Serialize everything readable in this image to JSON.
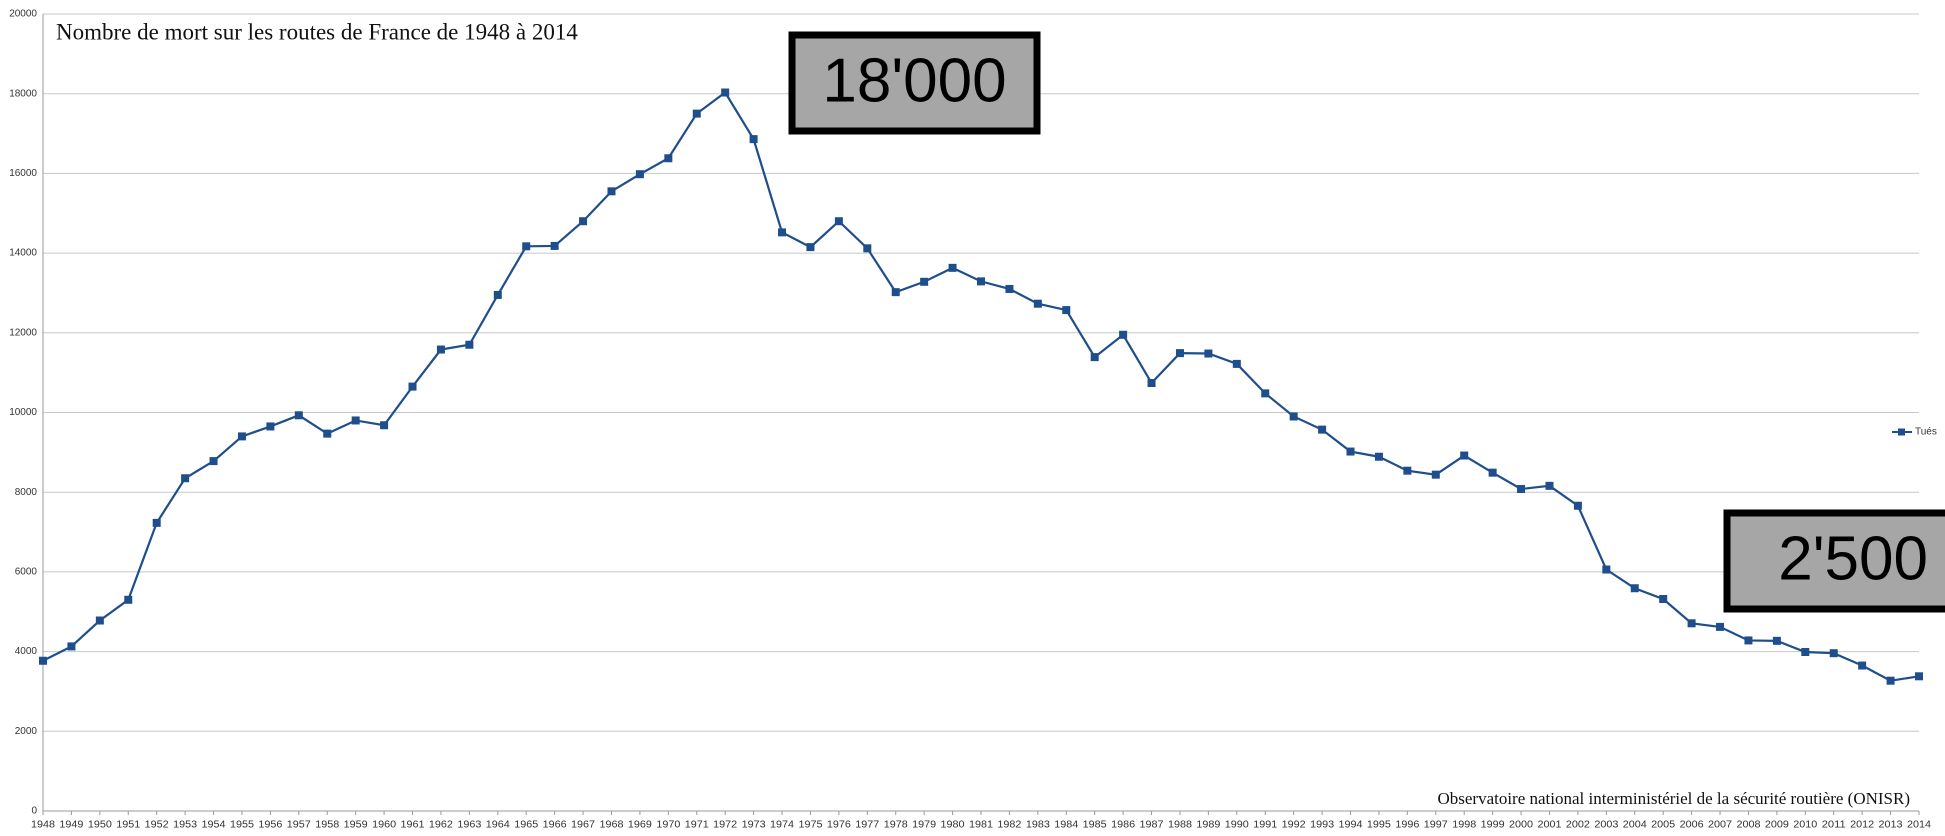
{
  "chart_data": {
    "type": "line",
    "title": "Nombre de mort sur les routes de France de 1948 à 2014",
    "source": "Observatoire national interministériel de la sécurité routière (ONISR)",
    "annotations": [
      "18'000",
      "2'500"
    ],
    "categories": [
      "1948",
      "1949",
      "1950",
      "1951",
      "1952",
      "1953",
      "1954",
      "1955",
      "1956",
      "1957",
      "1958",
      "1959",
      "1960",
      "1961",
      "1962",
      "1963",
      "1964",
      "1965",
      "1966",
      "1967",
      "1968",
      "1969",
      "1970",
      "1971",
      "1972",
      "1973",
      "1974",
      "1975",
      "1976",
      "1977",
      "1978",
      "1979",
      "1980",
      "1981",
      "1982",
      "1983",
      "1984",
      "1985",
      "1986",
      "1987",
      "1988",
      "1989",
      "1990",
      "1991",
      "1992",
      "1993",
      "1994",
      "1995",
      "1996",
      "1997",
      "1998",
      "1999",
      "2000",
      "2001",
      "2002",
      "2003",
      "2004",
      "2005",
      "2006",
      "2007",
      "2008",
      "2009",
      "2010",
      "2011",
      "2012",
      "2013",
      "2014"
    ],
    "series": [
      {
        "name": "Tués",
        "color": "#1f4e8c",
        "values": [
          3770,
          4130,
          4780,
          5300,
          7230,
          8350,
          8780,
          9400,
          9650,
          9930,
          9470,
          9800,
          9680,
          10650,
          11580,
          11700,
          12950,
          14170,
          14180,
          14800,
          15550,
          15980,
          16380,
          17500,
          18030,
          16860,
          14520,
          14150,
          14800,
          14120,
          13020,
          13280,
          13630,
          13290,
          13100,
          12730,
          12570,
          11390,
          11950,
          10740,
          11490,
          11480,
          11220,
          10480,
          9900,
          9570,
          9020,
          8890,
          8540,
          8440,
          8920,
          8490,
          8080,
          8160,
          7660,
          6060,
          5590,
          5320,
          4710,
          4620,
          4280,
          4270,
          3990,
          3960,
          3650,
          3270,
          3380
        ]
      }
    ],
    "ylim": [
      0,
      20000
    ],
    "yticks": [
      0,
      2000,
      4000,
      6000,
      8000,
      10000,
      12000,
      14000,
      16000,
      18000,
      20000
    ],
    "grid": true,
    "legend": "right"
  }
}
